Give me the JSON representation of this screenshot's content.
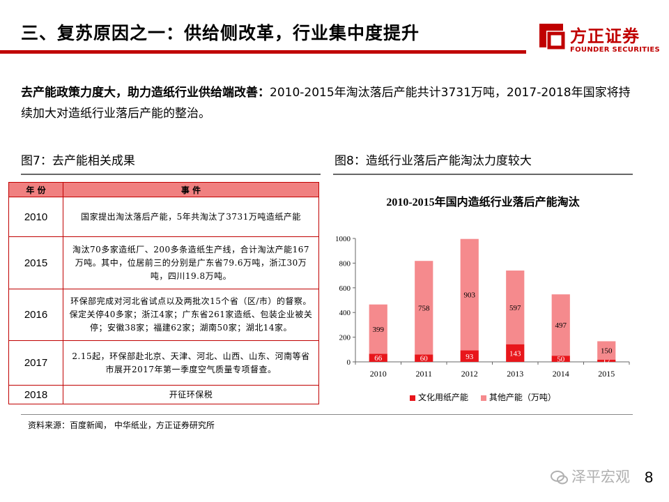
{
  "header": {
    "title": "三、复苏原因之一：供给侧改革，行业集中度提升",
    "logo_cn": "方正证券",
    "logo_en": "FOUNDER SECURITIES",
    "accent_color": "#c00000"
  },
  "intro": {
    "bold": "去产能政策力度大，助力造纸行业供给端改善：",
    "text": "2010-2015年淘汰落后产能共计3731万吨，2017-2018年国家将持续加大对造纸行业落后产能的整治。"
  },
  "figure7": {
    "label": "图7：去产能相关成果",
    "headers": [
      "年 份",
      "事 件"
    ],
    "rows": [
      {
        "year": "2010",
        "event": "国家提出淘汰落后产能，5年共淘汰了3731万吨造纸产能"
      },
      {
        "year": "2015",
        "event": "淘汰70多家造纸厂、200多条造纸生产线，合计淘汰产能167万吨。其中，位居前三的分别是广东省79.6万吨，浙江30万吨，四川19.8万吨。"
      },
      {
        "year": "2016",
        "event": "环保部完成对河北省试点以及两批次15个省（区/市）的督察。保定关停40多家；浙江4家；广东省261家造纸、包装企业被关停；安徽38家；福建62家；湖南50家；湖北14家。"
      },
      {
        "year": "2017",
        "event": "2.15起，环保部赴北京、天津、河北、山西、山东、河南等省市展开2017年第一季度空气质量专项督查。"
      },
      {
        "year": "2018",
        "event": "开征环保税"
      }
    ]
  },
  "figure8": {
    "label": "图8：造纸行业落后产能淘汰力度较大"
  },
  "chart_data": {
    "type": "bar",
    "stacked": true,
    "title": "2010-2015年国内造纸行业落后产能淘汰",
    "categories": [
      "2010",
      "2011",
      "2012",
      "2013",
      "2014",
      "2015"
    ],
    "series": [
      {
        "name": "文化用纸产能",
        "values": [
          66,
          60,
          93,
          143,
          50,
          17
        ],
        "color": "#e8161b"
      },
      {
        "name": "其他产能（万吨）",
        "values": [
          399,
          758,
          903,
          597,
          497,
          150
        ],
        "color": "#f58a8d"
      }
    ],
    "ylim": [
      0,
      1000
    ],
    "yticks": [
      0,
      200,
      400,
      600,
      800,
      1000
    ],
    "xlabel": "",
    "ylabel": "",
    "grid": false,
    "legend": "bottom"
  },
  "footer": {
    "source": "资料来源：百度新闻， 中华纸业，方正证券研究所",
    "watermark": "泽平宏观",
    "page_number": "8"
  }
}
